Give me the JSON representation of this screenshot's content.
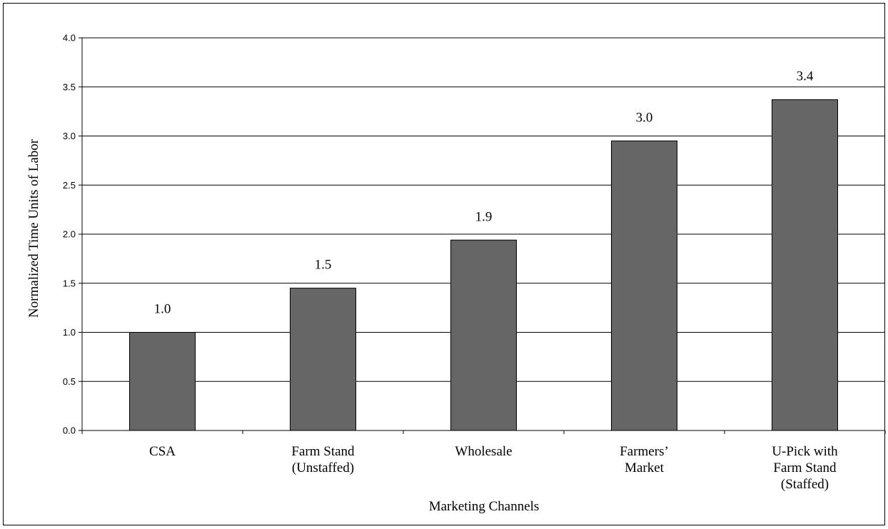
{
  "chart_data": {
    "type": "bar",
    "title": "",
    "xlabel": "Marketing Channels",
    "ylabel": "Normalized Time Units of Labor",
    "categories": [
      [
        "CSA"
      ],
      [
        "Farm Stand",
        "(Unstaffed)"
      ],
      [
        "Wholesale"
      ],
      [
        "Farmers’",
        "Market"
      ],
      [
        "U-Pick with",
        "Farm Stand",
        "(Staffed)"
      ]
    ],
    "values": [
      1.0,
      1.45,
      1.94,
      2.95,
      3.37
    ],
    "data_labels": [
      "1.0",
      "1.5",
      "1.9",
      "3.0",
      "3.4"
    ],
    "ylim": [
      0,
      4
    ],
    "yticks": [
      "0.0",
      "0.5",
      "1.0",
      "1.5",
      "2.0",
      "2.5",
      "3.0",
      "3.5",
      "4.0"
    ],
    "grid": true,
    "legend": "none",
    "bar_color": "#666666"
  }
}
